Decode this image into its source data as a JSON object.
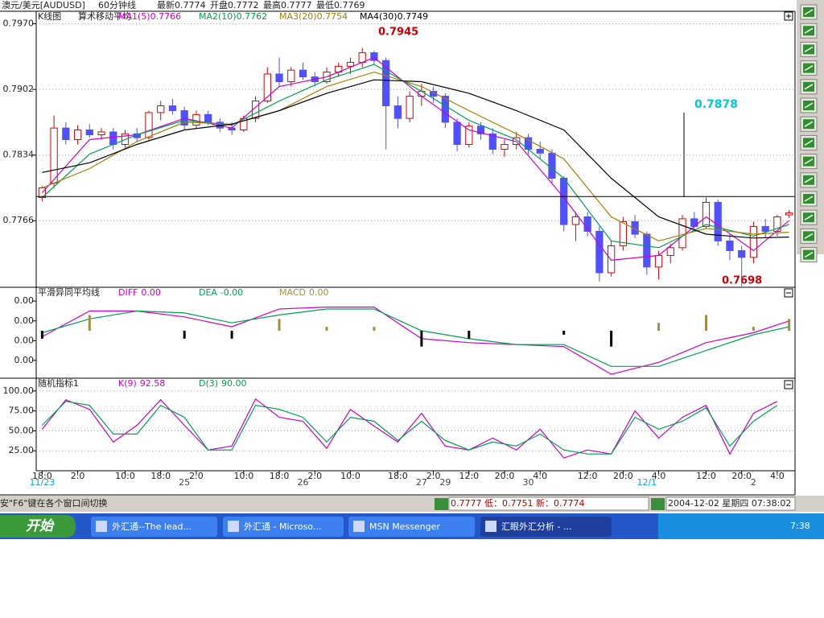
{
  "header": {
    "symbol": "澳元/美元[AUDUSD]",
    "period": "60分钟线",
    "quotes": [
      "最新0.7774",
      "开盘0.7772",
      "最高0.7777",
      "最低0.7769"
    ]
  },
  "chart_data": [
    {
      "type": "candlestick",
      "title": "K线图",
      "subtitle": "算术移动平均",
      "categories": [
        "18:0",
        null,
        null,
        "2:0",
        null,
        null,
        null,
        "10:0",
        null,
        null,
        "18:0",
        null,
        null,
        "2:0",
        null,
        null,
        null,
        "10:0",
        null,
        null,
        "18:0",
        null,
        null,
        "2:0",
        null,
        null,
        "10:0",
        null,
        null,
        null,
        "18:0",
        null,
        null,
        "2:0",
        null,
        null,
        "12:0",
        null,
        null,
        "20:0",
        null,
        null,
        "4:0",
        null,
        null,
        null,
        "12:0",
        null,
        null,
        "20:0",
        null,
        null,
        "4:0",
        null,
        null,
        null,
        "12:0",
        null,
        null,
        "20:0",
        null,
        null,
        "4:0",
        null
      ],
      "dates": [
        "11/23",
        null,
        null,
        null,
        null,
        null,
        null,
        null,
        null,
        null,
        null,
        null,
        "25",
        null,
        null,
        null,
        null,
        null,
        null,
        null,
        null,
        null,
        "26",
        null,
        null,
        null,
        null,
        null,
        null,
        null,
        null,
        null,
        "27",
        null,
        "29",
        null,
        null,
        null,
        null,
        null,
        null,
        "30",
        null,
        null,
        null,
        null,
        null,
        null,
        null,
        null,
        null,
        "12/1",
        null,
        null,
        null,
        null,
        null,
        null,
        null,
        null,
        "2",
        null,
        null,
        null
      ],
      "open": [
        0.779,
        0.7805,
        0.7862,
        0.785,
        0.786,
        0.7855,
        0.7858,
        0.7845,
        0.7856,
        0.7852,
        0.7878,
        0.7885,
        0.788,
        0.7865,
        0.7876,
        0.7868,
        0.7862,
        0.786,
        0.7872,
        0.789,
        0.7918,
        0.791,
        0.7922,
        0.7915,
        0.791,
        0.792,
        0.7926,
        0.793,
        0.794,
        0.7932,
        0.7885,
        0.7872,
        0.7895,
        0.79,
        0.7895,
        0.7868,
        0.7845,
        0.7864,
        0.7856,
        0.784,
        0.7845,
        0.7852,
        0.784,
        0.7836,
        0.781,
        0.7762,
        0.777,
        0.7755,
        0.7712,
        0.774,
        0.7765,
        0.7752,
        0.7718,
        0.773,
        0.7738,
        0.7768,
        0.776,
        0.7785,
        0.7745,
        0.7735,
        0.7728,
        0.776,
        0.7755,
        0.7772
      ],
      "high": [
        0.7802,
        0.7875,
        0.7868,
        0.7865,
        0.7866,
        0.7862,
        0.7862,
        0.786,
        0.7862,
        0.788,
        0.789,
        0.7892,
        0.7884,
        0.788,
        0.788,
        0.7872,
        0.7868,
        0.7875,
        0.7895,
        0.7925,
        0.7935,
        0.7925,
        0.793,
        0.792,
        0.7925,
        0.793,
        0.7935,
        0.7945,
        0.7942,
        0.7935,
        0.7895,
        0.79,
        0.7908,
        0.7905,
        0.7898,
        0.7872,
        0.7868,
        0.7868,
        0.7862,
        0.785,
        0.7858,
        0.7856,
        0.7848,
        0.784,
        0.7812,
        0.7775,
        0.7775,
        0.776,
        0.7745,
        0.777,
        0.7772,
        0.7755,
        0.7735,
        0.7742,
        0.7772,
        0.7775,
        0.779,
        0.7788,
        0.7752,
        0.774,
        0.7765,
        0.7768,
        0.7772,
        0.7777
      ],
      "low": [
        0.7786,
        0.78,
        0.7845,
        0.7845,
        0.7852,
        0.785,
        0.784,
        0.7842,
        0.7848,
        0.785,
        0.787,
        0.7876,
        0.786,
        0.7862,
        0.7865,
        0.7858,
        0.7855,
        0.7858,
        0.7868,
        0.7888,
        0.7905,
        0.7905,
        0.7912,
        0.7905,
        0.7908,
        0.7915,
        0.7918,
        0.7925,
        0.7928,
        0.784,
        0.7862,
        0.7868,
        0.7885,
        0.7888,
        0.7862,
        0.7838,
        0.7842,
        0.785,
        0.7835,
        0.7832,
        0.784,
        0.7835,
        0.783,
        0.7805,
        0.7755,
        0.7745,
        0.775,
        0.7703,
        0.7708,
        0.7735,
        0.7748,
        0.771,
        0.7705,
        0.7722,
        0.7735,
        0.7755,
        0.7758,
        0.774,
        0.7725,
        0.7698,
        0.7722,
        0.7748,
        0.775,
        0.7769
      ],
      "close": [
        0.78,
        0.7862,
        0.785,
        0.786,
        0.7855,
        0.7858,
        0.7845,
        0.7856,
        0.7852,
        0.7878,
        0.7885,
        0.788,
        0.7865,
        0.7876,
        0.7868,
        0.7862,
        0.786,
        0.7872,
        0.789,
        0.7918,
        0.791,
        0.7922,
        0.7915,
        0.791,
        0.792,
        0.7926,
        0.793,
        0.794,
        0.7932,
        0.7885,
        0.7872,
        0.7895,
        0.79,
        0.7895,
        0.7868,
        0.7845,
        0.7864,
        0.7856,
        0.784,
        0.7845,
        0.7852,
        0.784,
        0.7836,
        0.781,
        0.7762,
        0.777,
        0.7755,
        0.7712,
        0.774,
        0.7765,
        0.7752,
        0.7718,
        0.773,
        0.7738,
        0.7768,
        0.776,
        0.7785,
        0.7745,
        0.7735,
        0.7728,
        0.776,
        0.7755,
        0.777,
        0.7774
      ],
      "up_color": "#e00000",
      "down_color": "#5050ff",
      "series": [
        {
          "name": "MA1(5)",
          "legend_value": "0.7766",
          "color": "#cc00cc",
          "x": [
            0,
            4,
            8,
            12,
            16,
            20,
            24,
            28,
            32,
            36,
            40,
            44,
            48,
            52,
            56,
            60,
            63
          ],
          "values": [
            0.7795,
            0.785,
            0.7855,
            0.7872,
            0.7862,
            0.7905,
            0.7915,
            0.7935,
            0.7895,
            0.786,
            0.7848,
            0.779,
            0.7725,
            0.773,
            0.777,
            0.7735,
            0.7766
          ]
        },
        {
          "name": "MA2(10)",
          "legend_value": "0.7762",
          "color": "#00a050",
          "x": [
            0,
            4,
            8,
            12,
            16,
            20,
            24,
            28,
            32,
            36,
            40,
            44,
            48,
            52,
            56,
            60,
            63
          ],
          "values": [
            0.779,
            0.7835,
            0.7855,
            0.787,
            0.7865,
            0.789,
            0.7912,
            0.7928,
            0.79,
            0.787,
            0.785,
            0.781,
            0.7745,
            0.7738,
            0.7762,
            0.775,
            0.7762
          ]
        },
        {
          "name": "MA3(20)",
          "legend_value": "0.7754",
          "color": "#a08000",
          "x": [
            0,
            4,
            8,
            12,
            16,
            20,
            24,
            28,
            32,
            36,
            40,
            44,
            48,
            52,
            56,
            60,
            63
          ],
          "values": [
            0.78,
            0.782,
            0.7848,
            0.7868,
            0.7866,
            0.788,
            0.7905,
            0.792,
            0.7905,
            0.788,
            0.7856,
            0.783,
            0.777,
            0.7745,
            0.7758,
            0.7752,
            0.7754
          ]
        },
        {
          "name": "MA4(30)",
          "legend_value": "0.7749",
          "color": "#000000",
          "x": [
            0,
            4,
            8,
            12,
            16,
            20,
            24,
            28,
            32,
            36,
            40,
            44,
            48,
            52,
            56,
            60,
            63
          ],
          "values": [
            0.7816,
            0.7826,
            0.7845,
            0.786,
            0.7866,
            0.788,
            0.7898,
            0.7912,
            0.791,
            0.7898,
            0.788,
            0.786,
            0.781,
            0.777,
            0.7752,
            0.7748,
            0.7749
          ]
        }
      ],
      "ylim": [
        0.7697,
        0.7983
      ],
      "yticks": [
        {
          "value": 0.797,
          "label": "0.7970"
        },
        {
          "value": 0.7902,
          "label": "0.7902"
        },
        {
          "value": 0.7834,
          "label": "0.7834"
        },
        {
          "value": 0.7766,
          "label": "0.7766"
        }
      ],
      "grid": true,
      "hline": 0.7791,
      "annotations": [
        {
          "text": "0.7945",
          "color": "#cc0000"
        },
        {
          "text": "0.7698",
          "color": "#cc0000"
        },
        {
          "text": "0.7878",
          "color": "#00c8d8"
        }
      ]
    },
    {
      "type": "macd",
      "title": "平滑异同平均线",
      "series": [
        {
          "name": "DIFF",
          "legend_value": "0.00",
          "color": "#cc00cc",
          "x": [
            0,
            4,
            8,
            12,
            16,
            20,
            24,
            28,
            32,
            36,
            40,
            44,
            48,
            52,
            56,
            60,
            63
          ],
          "values": [
            -0.0003,
            0.001,
            0.001,
            0.0007,
            0.0002,
            0.0011,
            0.0012,
            0.0012,
            -0.0004,
            -0.0006,
            -0.0007,
            -0.0008,
            -0.0022,
            -0.0016,
            -0.0006,
            -0.0001,
            0.0005
          ]
        },
        {
          "name": "DEA",
          "legend_value": "-0.00",
          "color": "#00a050",
          "x": [
            0,
            4,
            8,
            12,
            16,
            20,
            24,
            28,
            32,
            36,
            40,
            44,
            48,
            52,
            56,
            60,
            63
          ],
          "values": [
            -0.0001,
            0.0006,
            0.001,
            0.0009,
            0.0004,
            0.0008,
            0.0011,
            0.0011,
            0,
            -0.0004,
            -0.0007,
            -0.0007,
            -0.0018,
            -0.0018,
            -0.001,
            -0.0002,
            0.0002
          ]
        },
        {
          "name": "MACD",
          "legend_value": "0.00",
          "color": "#a09040",
          "negative_color": "#000000",
          "style": "histogram",
          "x": [
            0,
            4,
            8,
            12,
            16,
            20,
            24,
            28,
            32,
            36,
            40,
            44,
            48,
            52,
            56,
            60,
            63
          ],
          "values": [
            -0.0004,
            0.0008,
            0,
            -0.0004,
            -0.0004,
            0.0006,
            0.0002,
            0.0002,
            -0.0008,
            -0.0004,
            0,
            -0.0002,
            -0.0008,
            0.0004,
            0.0008,
            0.0002,
            0.0006
          ]
        }
      ],
      "ylim": [
        -0.0024,
        0.0022
      ],
      "yticks": [
        {
          "value": 0.0015,
          "label": "0.00"
        },
        {
          "value": 0.0005,
          "label": "0.00"
        },
        {
          "value": -0.0005,
          "label": "0.00"
        },
        {
          "value": -0.0015,
          "label": "0.00"
        }
      ],
      "grid": false
    },
    {
      "type": "stochastic",
      "title": "随机指标1",
      "series": [
        {
          "name": "K(9)",
          "legend_value": "92.58",
          "color": "#cc00cc",
          "x": [
            0,
            2,
            4,
            6,
            8,
            10,
            12,
            14,
            16,
            18,
            20,
            22,
            24,
            26,
            28,
            30,
            32,
            34,
            36,
            38,
            40,
            42,
            44,
            46,
            48,
            50,
            52,
            54,
            56,
            58,
            60,
            62
          ],
          "values": [
            52,
            89,
            77,
            36,
            57,
            89,
            57,
            26,
            31,
            90,
            67,
            62,
            28,
            77,
            56,
            36,
            72,
            31,
            26,
            41,
            26,
            52,
            16,
            26,
            21,
            75,
            41,
            67,
            82,
            21,
            72,
            87
          ]
        },
        {
          "name": "D(3)",
          "legend_value": "90.00",
          "color": "#00a050",
          "x": [
            0,
            2,
            4,
            6,
            8,
            10,
            12,
            14,
            16,
            18,
            20,
            22,
            24,
            26,
            28,
            30,
            32,
            34,
            36,
            38,
            40,
            42,
            44,
            46,
            48,
            50,
            52,
            54,
            56,
            58,
            60,
            62
          ],
          "values": [
            57,
            87,
            82,
            46,
            46,
            82,
            67,
            26,
            26,
            82,
            77,
            67,
            36,
            67,
            62,
            38,
            62,
            38,
            26,
            36,
            31,
            46,
            26,
            21,
            21,
            67,
            52,
            62,
            79,
            31,
            62,
            82
          ]
        }
      ],
      "ylim": [
        0,
        116
      ],
      "yticks": [
        {
          "value": 100,
          "label": "100.00"
        },
        {
          "value": 75,
          "label": "75.00"
        },
        {
          "value": 50,
          "label": "50.00"
        },
        {
          "value": 25,
          "label": "25.00"
        }
      ],
      "grid": true
    }
  ],
  "status_bar": {
    "hint": "安\"F6\"键在各个窗口间切换",
    "quote": "0.7777 低：0.7751 新：0.7774",
    "datetime": "2004-12-02 星期四 07:38:02"
  },
  "taskbar": {
    "start": "开始",
    "windows": [
      "外汇通--The lead...",
      "外汇通 - Microso...",
      "MSN Messenger",
      "汇眼外汇分析 - ..."
    ],
    "clock": "7:38"
  }
}
